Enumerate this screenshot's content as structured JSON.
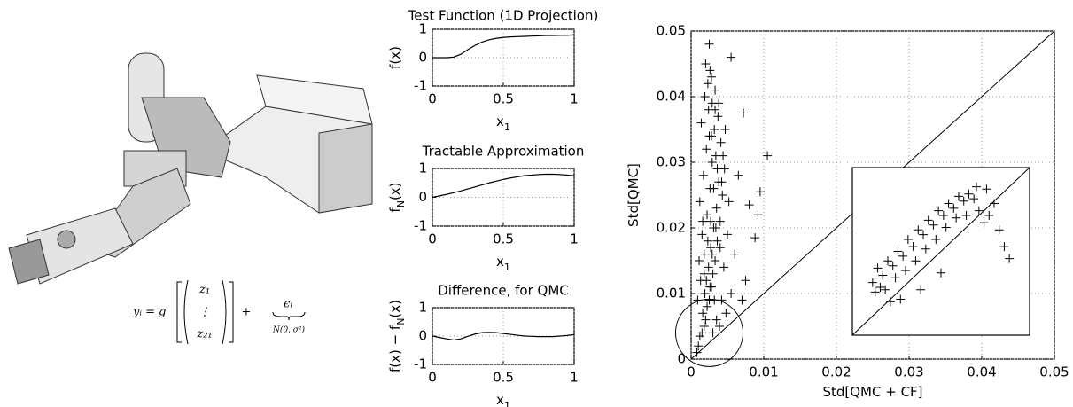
{
  "equation": {
    "lhs": "yᵢ = g",
    "vector": [
      "z₁",
      "⋮",
      "z₂₁"
    ],
    "plus": "+",
    "noise": "ϵᵢ",
    "noise_dist": "N(0, σ²)"
  },
  "chart_data": [
    {
      "type": "line",
      "title": "Test Function (1D Projection)",
      "xlabel": [
        "x",
        "1"
      ],
      "ylabel": [
        "f(x)"
      ],
      "x": [
        0,
        0.05,
        0.1,
        0.15,
        0.2,
        0.25,
        0.3,
        0.35,
        0.4,
        0.45,
        0.5,
        0.55,
        0.6,
        0.65,
        0.7,
        0.75,
        0.8,
        0.85,
        0.9,
        0.95,
        1
      ],
      "series": [
        {
          "color": "#000000",
          "values": [
            0,
            0,
            0,
            0.02,
            0.12,
            0.28,
            0.43,
            0.55,
            0.63,
            0.68,
            0.71,
            0.73,
            0.74,
            0.75,
            0.76,
            0.77,
            0.78,
            0.78,
            0.79,
            0.79,
            0.8
          ]
        }
      ],
      "xlim": [
        0,
        1
      ],
      "xticks": [
        0,
        0.5,
        1
      ],
      "ylim": [
        -1,
        1
      ],
      "yticks": [
        -1,
        0,
        1
      ],
      "grid": true
    },
    {
      "type": "line",
      "title": "Tractable Approximation",
      "xlabel": [
        "x",
        "1"
      ],
      "ylabel": [
        "f",
        "N",
        "(x)"
      ],
      "x": [
        0,
        0.05,
        0.1,
        0.15,
        0.2,
        0.25,
        0.3,
        0.35,
        0.4,
        0.45,
        0.5,
        0.55,
        0.6,
        0.65,
        0.7,
        0.75,
        0.8,
        0.85,
        0.9,
        0.95,
        1
      ],
      "series": [
        {
          "color": "#000000",
          "values": [
            0,
            0.05,
            0.1,
            0.16,
            0.22,
            0.29,
            0.36,
            0.43,
            0.5,
            0.56,
            0.62,
            0.67,
            0.71,
            0.75,
            0.77,
            0.79,
            0.8,
            0.8,
            0.79,
            0.77,
            0.75
          ]
        }
      ],
      "xlim": [
        0,
        1
      ],
      "xticks": [
        0,
        0.5,
        1
      ],
      "ylim": [
        -1,
        1
      ],
      "yticks": [
        -1,
        0,
        1
      ],
      "grid": true
    },
    {
      "type": "line",
      "title": "Difference, for QMC",
      "xlabel": [
        "x",
        "1"
      ],
      "ylabel": [
        "f(x) − f",
        "N",
        "(x)"
      ],
      "x": [
        0,
        0.05,
        0.1,
        0.15,
        0.2,
        0.25,
        0.3,
        0.35,
        0.4,
        0.45,
        0.5,
        0.55,
        0.6,
        0.65,
        0.7,
        0.75,
        0.8,
        0.85,
        0.9,
        0.95,
        1
      ],
      "series": [
        {
          "color": "#000000",
          "values": [
            0,
            -0.05,
            -0.1,
            -0.14,
            -0.1,
            -0.01,
            0.07,
            0.12,
            0.13,
            0.12,
            0.09,
            0.06,
            0.03,
            0,
            -0.01,
            -0.02,
            -0.02,
            -0.02,
            0,
            0.02,
            0.05
          ]
        }
      ],
      "xlim": [
        0,
        1
      ],
      "xticks": [
        0,
        0.5,
        1
      ],
      "ylim": [
        -1,
        1
      ],
      "yticks": [
        -1,
        0,
        1
      ],
      "grid": true
    },
    {
      "type": "scatter",
      "xlabel": [
        "Std[QMC + CF]"
      ],
      "ylabel": [
        "Std[QMC]"
      ],
      "series": [
        {
          "color": "#000000",
          "x": [
            0.0008,
            0.001,
            0.0012,
            0.0015,
            0.0018,
            0.002,
            0.0016,
            0.0022,
            0.0025,
            0.0019,
            0.0028,
            0.0021,
            0.003,
            0.0024,
            0.0033,
            0.0018,
            0.0027,
            0.0036,
            0.0015,
            0.0031,
            0.004,
            0.0022,
            0.0035,
            0.0012,
            0.0043,
            0.0026,
            0.0038,
            0.0017,
            0.0046,
            0.0029,
            0.0034,
            0.0021,
            0.0041,
            0.0025,
            0.0032,
            0.0014,
            0.0037,
            0.0024,
            0.0029,
            0.0019,
            0.0033,
            0.0023,
            0.0028,
            0.0026,
            0.0055,
            0.0025,
            0.0105,
            0.0095,
            0.0092,
            0.0088,
            0.0075,
            0.007,
            0.008,
            0.0072,
            0.0065,
            0.006,
            0.0055,
            0.0048,
            0.005,
            0.0052,
            0.0045,
            0.0042,
            0.0039,
            0.003,
            0.0035,
            0.0011,
            0.0009,
            0.0013,
            0.0016,
            0.0044,
            0.0047,
            0.0038,
            0.002,
            0.0031,
            0.0027,
            0.0023,
            0.0034,
            0.0029,
            0.0026,
            0.0032,
            0.0018,
            0.004,
            0.0036,
            0.0042,
            0.0028,
            0.0033
          ],
          "values": [
            0.001,
            0.002,
            0.0035,
            0.004,
            0.005,
            0.006,
            0.007,
            0.008,
            0.009,
            0.01,
            0.011,
            0.012,
            0.013,
            0.014,
            0.015,
            0.016,
            0.017,
            0.018,
            0.019,
            0.02,
            0.021,
            0.022,
            0.023,
            0.024,
            0.025,
            0.026,
            0.027,
            0.028,
            0.029,
            0.03,
            0.031,
            0.032,
            0.033,
            0.034,
            0.035,
            0.036,
            0.037,
            0.038,
            0.039,
            0.04,
            0.041,
            0.042,
            0.043,
            0.044,
            0.046,
            0.048,
            0.031,
            0.0255,
            0.022,
            0.0185,
            0.012,
            0.009,
            0.0235,
            0.0375,
            0.028,
            0.016,
            0.01,
            0.007,
            0.019,
            0.024,
            0.014,
            0.009,
            0.005,
            0.004,
            0.006,
            0.015,
            0.009,
            0.012,
            0.021,
            0.031,
            0.035,
            0.039,
            0.045,
            0.026,
            0.021,
            0.018,
            0.02,
            0.016,
            0.011,
            0.009,
            0.013,
            0.017,
            0.029,
            0.027,
            0.034,
            0.038
          ]
        }
      ],
      "xlim": [
        0,
        0.05
      ],
      "xticks": [
        0,
        0.01,
        0.02,
        0.03,
        0.04,
        0.05
      ],
      "ylim": [
        0,
        0.05
      ],
      "yticks": [
        0,
        0.01,
        0.02,
        0.03,
        0.04,
        0.05
      ],
      "grid": true
    },
    {
      "type": "scatter",
      "series": [
        {
          "color": "#000000",
          "x": [
            0.0008,
            0.001,
            0.0012,
            0.0014,
            0.0016,
            0.0018,
            0.002,
            0.0022,
            0.0024,
            0.0026,
            0.0028,
            0.003,
            0.0032,
            0.0034,
            0.0036,
            0.0038,
            0.004,
            0.0042,
            0.0044,
            0.0046,
            0.0048,
            0.005,
            0.0052,
            0.0054,
            0.0056,
            0.0058,
            0.006,
            0.0062,
            0.0009,
            0.0011,
            0.0013,
            0.0017,
            0.0021,
            0.0025,
            0.0029,
            0.0033,
            0.0037,
            0.0041,
            0.0045,
            0.0035,
            0.0027,
            0.0019,
            0.0015,
            0.0049,
            0.0053
          ],
          "values": [
            0.0022,
            0.0028,
            0.0025,
            0.0031,
            0.0029,
            0.0035,
            0.0033,
            0.004,
            0.0037,
            0.0044,
            0.0042,
            0.0048,
            0.0046,
            0.0052,
            0.005,
            0.0055,
            0.0053,
            0.0058,
            0.0056,
            0.0059,
            0.0057,
            0.0052,
            0.0047,
            0.005,
            0.0055,
            0.0044,
            0.0037,
            0.0032,
            0.0018,
            0.002,
            0.0019,
            0.0024,
            0.0027,
            0.0031,
            0.0036,
            0.004,
            0.0045,
            0.0049,
            0.005,
            0.0026,
            0.0019,
            0.0015,
            0.0014,
            0.0062,
            0.0061
          ]
        }
      ],
      "xlim": [
        0,
        0.007
      ],
      "ylim": [
        0,
        0.007
      ]
    }
  ]
}
